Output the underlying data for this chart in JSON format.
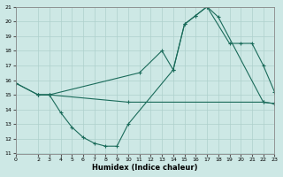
{
  "xlabel": "Humidex (Indice chaleur)",
  "xlim": [
    0,
    23
  ],
  "ylim": [
    11,
    21
  ],
  "yticks": [
    11,
    12,
    13,
    14,
    15,
    16,
    17,
    18,
    19,
    20,
    21
  ],
  "xticks": [
    0,
    2,
    3,
    4,
    5,
    6,
    7,
    8,
    9,
    10,
    11,
    12,
    13,
    14,
    15,
    16,
    17,
    18,
    19,
    20,
    21,
    22,
    23
  ],
  "bg_color": "#cde8e5",
  "line_color": "#1a6b5a",
  "grid_color": "#aed0cc",
  "line1_x": [
    0,
    2,
    3,
    10,
    22,
    23
  ],
  "line1_y": [
    15.8,
    15.0,
    15.0,
    14.5,
    14.5,
    14.4
  ],
  "line2_x": [
    0,
    2,
    3,
    11,
    13,
    14,
    15,
    16,
    17,
    18,
    22,
    23
  ],
  "line2_y": [
    15.8,
    15.0,
    15.0,
    16.5,
    18.0,
    16.7,
    19.8,
    20.4,
    21.0,
    20.3,
    14.5,
    14.4
  ],
  "line3_x": [
    2,
    3,
    4,
    5,
    6,
    7,
    8,
    9,
    10,
    14,
    15,
    16,
    17,
    19,
    20,
    21,
    22,
    23
  ],
  "line3_y": [
    15.0,
    15.0,
    13.8,
    12.8,
    12.1,
    11.7,
    11.5,
    11.5,
    13.0,
    16.7,
    19.8,
    20.4,
    21.0,
    18.5,
    18.5,
    18.5,
    17.0,
    15.2
  ]
}
